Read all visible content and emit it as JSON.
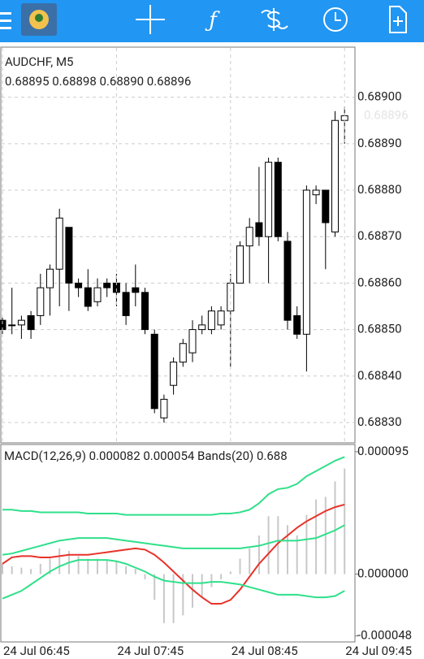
{
  "chart_data": [
    {
      "type": "candlestick",
      "title": "AUDCHF, M5",
      "subtitle": "0.68895 0.68898 0.68890 0.68896",
      "series": [
        {
          "name": "open",
          "values": [
            0.68852,
            0.68851,
            0.68851,
            0.68853,
            0.68853,
            0.68859,
            0.68863,
            0.68872,
            0.6886,
            0.68859,
            0.68856,
            0.6886,
            0.6886,
            0.68858,
            0.68859,
            0.68858,
            0.68849,
            0.68831,
            0.68838,
            0.68843,
            0.68845,
            0.6885,
            0.6885,
            0.68851,
            0.68854,
            0.6886,
            0.68868,
            0.68873,
            0.6887,
            0.68886,
            0.68869,
            0.68853,
            0.68849,
            0.68879,
            0.6888,
            0.68871,
            0.68895
          ]
        },
        {
          "name": "high",
          "values": [
            0.68853,
            0.68859,
            0.68853,
            0.68854,
            0.68862,
            0.68864,
            0.68876,
            0.68872,
            0.68861,
            0.68863,
            0.68861,
            0.68861,
            0.68862,
            0.6886,
            0.68864,
            0.68859,
            0.6885,
            0.68836,
            0.68844,
            0.68848,
            0.68852,
            0.68853,
            0.68855,
            0.68855,
            0.68862,
            0.68869,
            0.68874,
            0.68885,
            0.68887,
            0.68887,
            0.68871,
            0.68855,
            0.68881,
            0.68881,
            0.6888,
            0.68897,
            0.68898
          ]
        },
        {
          "name": "low",
          "values": [
            0.68849,
            0.68849,
            0.68848,
            0.68848,
            0.68851,
            0.68853,
            0.68855,
            0.68854,
            0.68857,
            0.68854,
            0.68855,
            0.68857,
            0.68855,
            0.68851,
            0.68855,
            0.68849,
            0.68832,
            0.6883,
            0.68836,
            0.68842,
            0.68843,
            0.68849,
            0.68849,
            0.6885,
            0.68842,
            0.6886,
            0.6886,
            0.68868,
            0.6886,
            0.68869,
            0.6885,
            0.68848,
            0.68841,
            0.68877,
            0.68863,
            0.6887,
            0.6889
          ]
        },
        {
          "name": "close",
          "values": [
            0.6885,
            0.68851,
            0.68852,
            0.6885,
            0.68859,
            0.68863,
            0.68874,
            0.6886,
            0.68859,
            0.68855,
            0.68859,
            0.68859,
            0.68858,
            0.68853,
            0.68858,
            0.6885,
            0.68833,
            0.68835,
            0.68843,
            0.68847,
            0.6885,
            0.68851,
            0.68854,
            0.68854,
            0.6886,
            0.68868,
            0.68872,
            0.6887,
            0.68886,
            0.6887,
            0.68852,
            0.68849,
            0.6888,
            0.6888,
            0.68873,
            0.68895,
            0.68896
          ]
        }
      ],
      "last_price_label": "0.68896",
      "ylim": [
        0.688258,
        0.689106
      ],
      "yticks": [
        {
          "value": 0.6883,
          "label": "0.68830"
        },
        {
          "value": 0.6884,
          "label": "0.68840"
        },
        {
          "value": 0.6885,
          "label": "0.68850"
        },
        {
          "value": 0.6886,
          "label": "0.68860"
        },
        {
          "value": 0.6887,
          "label": "0.68870"
        },
        {
          "value": 0.6888,
          "label": "0.68880"
        },
        {
          "value": 0.6889,
          "label": "0.68890"
        },
        {
          "value": 0.689,
          "label": "0.68900"
        }
      ],
      "grid": true
    },
    {
      "type": "macd",
      "title": "MACD(12,26,9) 0.000082 0.000054 Bands(20) 0.688",
      "series": [
        {
          "name": "MACD",
          "kind": "histogram",
          "color": "#c8c8c8",
          "values": [
            8e-06,
            6e-06,
            5e-06,
            4e-06,
            8e-06,
            1.2e-05,
            2e-05,
            1.8e-05,
            1.4e-05,
            1.2e-05,
            1.2e-05,
            1.1e-05,
            1e-05,
            6e-06,
            4e-06,
            -4e-06,
            -2e-05,
            -3.8e-05,
            -3.8e-05,
            -3.2e-05,
            -2.6e-05,
            -1.8e-05,
            -1e-05,
            -4e-06,
            2e-06,
            1.2e-05,
            2e-05,
            3e-05,
            4.5e-05,
            4.5e-05,
            3.8e-05,
            3e-05,
            4.6e-05,
            5.8e-05,
            6e-05,
            7.2e-05,
            8.2e-05
          ]
        },
        {
          "name": "Signal",
          "kind": "line",
          "color": "#e8322a",
          "values": [
            8e-06,
            1.3e-05,
            1.4e-05,
            1.4e-05,
            1.3e-05,
            1.3e-05,
            1.4e-05,
            1.5e-05,
            1.5e-05,
            1.5e-05,
            1.6e-05,
            1.7e-05,
            1.8e-05,
            1.9e-05,
            2e-05,
            1.9e-05,
            1.5e-05,
            9e-06,
            2e-06,
            -5e-06,
            -1.2e-05,
            -1.8e-05,
            -2.3e-05,
            -2.3e-05,
            -2e-05,
            -1.2e-05,
            -2e-06,
            8e-06,
            1.6e-05,
            2.4e-05,
            3e-05,
            3.6e-05,
            4.1e-05,
            4.5e-05,
            4.9e-05,
            5.2e-05,
            5.4e-05
          ]
        },
        {
          "name": "Upper band",
          "kind": "line",
          "color": "#2fe08a",
          "values": [
            5e-05,
            5e-05,
            4.9e-05,
            4.9e-05,
            4.8e-05,
            4.8e-05,
            4.8e-05,
            4.8e-05,
            4.8e-05,
            4.7e-05,
            4.7e-05,
            4.7e-05,
            4.7e-05,
            4.6e-05,
            4.6e-05,
            4.6e-05,
            4.6e-05,
            4.6e-05,
            4.6e-05,
            4.6e-05,
            4.6e-05,
            4.6e-05,
            4.6e-05,
            4.7e-05,
            4.7e-05,
            4.8e-05,
            5e-05,
            5.5e-05,
            6.2e-05,
            6.6e-05,
            6.7e-05,
            7e-05,
            7.6e-05,
            8e-05,
            8.4e-05,
            8.8e-05,
            9.1e-05
          ]
        },
        {
          "name": "Middle band",
          "kind": "line",
          "color": "#2fe08a",
          "values": [
            1.5e-05,
            1.6e-05,
            1.8e-05,
            2e-05,
            2.2e-05,
            2.4e-05,
            2.6e-05,
            2.7e-05,
            2.8e-05,
            2.8e-05,
            2.8e-05,
            2.8e-05,
            2.7e-05,
            2.6e-05,
            2.5e-05,
            2.4e-05,
            2.3e-05,
            2.2e-05,
            2.1e-05,
            2e-05,
            2e-05,
            2e-05,
            2e-05,
            2e-05,
            2e-05,
            2e-05,
            2.1e-05,
            2.2e-05,
            2.4e-05,
            2.6e-05,
            2.6e-05,
            2.6e-05,
            2.7e-05,
            2.8e-05,
            3.1e-05,
            3.4e-05,
            3.8e-05
          ]
        },
        {
          "name": "Lower band",
          "kind": "line",
          "color": "#2fe08a",
          "values": [
            -1.9e-05,
            -1.6e-05,
            -1.3e-05,
            -8e-06,
            -3e-06,
            2e-06,
            6e-06,
            9e-06,
            1.1e-05,
            1.1e-05,
            1.1e-05,
            1.1e-05,
            1e-05,
            8e-06,
            5e-06,
            2e-06,
            -2e-06,
            -5e-06,
            -6e-06,
            -7e-06,
            -7e-06,
            -7e-06,
            -6e-06,
            -6e-06,
            -7e-06,
            -8e-06,
            -1e-05,
            -1.2e-05,
            -1.4e-05,
            -1.6e-05,
            -1.6e-05,
            -1.6e-05,
            -1.7e-05,
            -1.8e-05,
            -1.8e-05,
            -1.7e-05,
            -1.3e-05
          ]
        }
      ],
      "ylim": [
        -5.2e-05,
        0.0001
      ],
      "yticks": [
        -4.8e-05,
        {
          "value": 0,
          "label": "0.000000"
        },
        9.5e-05
      ],
      "xticks": [
        {
          "value": 0,
          "label": "24 Jul 06:45"
        },
        {
          "value": 12,
          "label": "24 Jul 07:45"
        },
        {
          "value": 24,
          "label": "24 Jul 08:45"
        },
        {
          "value": 36,
          "label": "24 Jul 09:45"
        }
      ]
    }
  ]
}
